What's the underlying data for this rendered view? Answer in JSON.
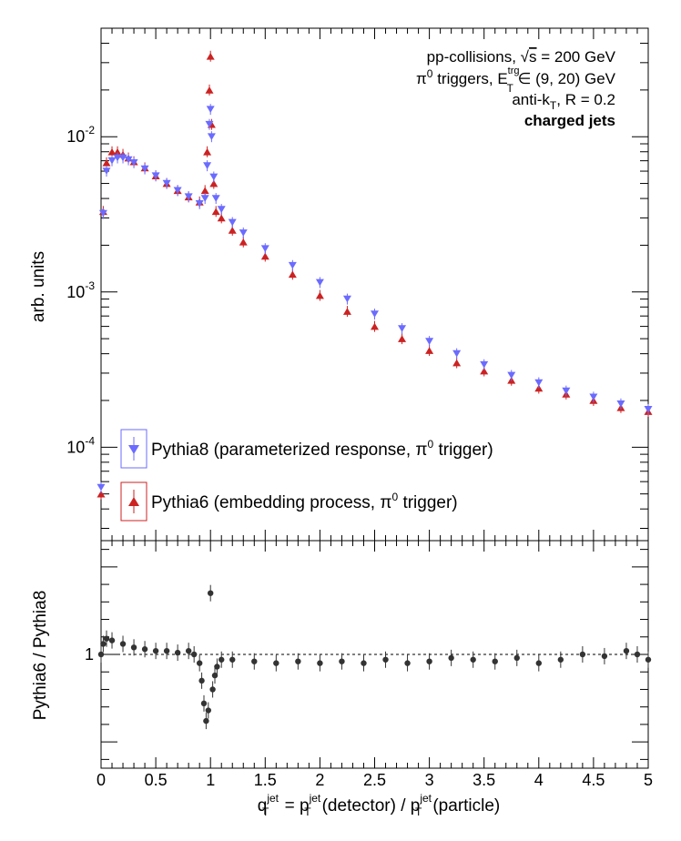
{
  "chart_data": [
    {
      "type": "scatter",
      "ylabel": "arb. units",
      "yscale": "log",
      "ylim": [
        2.5e-05,
        0.05
      ],
      "xlim": [
        0,
        5
      ],
      "yticks": [
        {
          "value": 0.01,
          "base": "10",
          "exp": "-2"
        },
        {
          "value": 0.001,
          "base": "10",
          "exp": "-3"
        },
        {
          "value": 0.0001,
          "base": "10",
          "exp": "-4"
        }
      ],
      "annotations": {
        "line1": {
          "pre": "pp-collisions, ",
          "sqrt": "√",
          "s": "s",
          "post": " = 200 GeV"
        },
        "line2": {
          "pi": "π",
          "sup0": "0",
          "mid": " triggers, E",
          "sup": "trg",
          "sub": "T",
          "post": " ∈ (9, 20) GeV"
        },
        "line3": {
          "pre": "anti-k",
          "sub": "T",
          "post": ", R = 0.2"
        },
        "line4": "charged jets"
      },
      "legend": {
        "position": "bottom-left",
        "entries": [
          {
            "pre": "Pythia8 (parameterized response, π",
            "sup": "0",
            "post": " trigger)",
            "color": "#6b6bff",
            "marker": "triangle-down"
          },
          {
            "pre": "Pythia6 (embedding process, π",
            "sup": "0",
            "post": " trigger)",
            "color": "#cc2222",
            "marker": "triangle-up"
          }
        ]
      },
      "series": [
        {
          "name": "Pythia8 (parameterized response, π0 trigger)",
          "color": "#6b6bff",
          "x": [
            0.0,
            0.02,
            0.05,
            0.1,
            0.15,
            0.2,
            0.25,
            0.3,
            0.4,
            0.5,
            0.6,
            0.7,
            0.8,
            0.9,
            0.95,
            0.97,
            0.99,
            1.0,
            1.01,
            1.03,
            1.05,
            1.1,
            1.2,
            1.3,
            1.5,
            1.75,
            2.0,
            2.25,
            2.5,
            2.75,
            3.0,
            3.25,
            3.5,
            3.75,
            4.0,
            4.25,
            4.5,
            4.75,
            5.0
          ],
          "y": [
            5.5e-05,
            0.0032,
            0.006,
            0.007,
            0.0073,
            0.0073,
            0.0071,
            0.0068,
            0.0062,
            0.0056,
            0.005,
            0.0045,
            0.0041,
            0.0037,
            0.004,
            0.0065,
            0.012,
            0.015,
            0.01,
            0.0055,
            0.004,
            0.0034,
            0.0028,
            0.0024,
            0.0019,
            0.00148,
            0.00115,
            0.0009,
            0.00072,
            0.00058,
            0.00048,
            0.0004,
            0.00034,
            0.00029,
            0.00026,
            0.00023,
            0.00021,
            0.00019,
            0.000175
          ]
        },
        {
          "name": "Pythia6 (embedding process, π0 trigger)",
          "color": "#cc2222",
          "x": [
            0.0,
            0.02,
            0.05,
            0.1,
            0.15,
            0.2,
            0.25,
            0.3,
            0.4,
            0.5,
            0.6,
            0.7,
            0.8,
            0.9,
            0.95,
            0.97,
            0.99,
            1.0,
            1.01,
            1.03,
            1.05,
            1.1,
            1.2,
            1.3,
            1.5,
            1.75,
            2.0,
            2.25,
            2.5,
            2.75,
            3.0,
            3.25,
            3.5,
            3.75,
            4.0,
            4.25,
            4.5,
            4.75,
            5.0
          ],
          "y": [
            5e-05,
            0.0033,
            0.0068,
            0.008,
            0.008,
            0.0077,
            0.0073,
            0.0069,
            0.0063,
            0.0056,
            0.005,
            0.0045,
            0.0041,
            0.0038,
            0.0045,
            0.008,
            0.02,
            0.033,
            0.012,
            0.005,
            0.0033,
            0.003,
            0.0025,
            0.0021,
            0.0017,
            0.0013,
            0.00095,
            0.00075,
            0.0006,
            0.0005,
            0.00042,
            0.00035,
            0.00031,
            0.00027,
            0.00024,
            0.00022,
            0.0002,
            0.00018,
            0.00017
          ]
        }
      ]
    },
    {
      "type": "scatter",
      "ylabel": "Pythia6 / Pythia8",
      "xlabel": {
        "q": "q",
        "qsup": "jet",
        "qsub": "T",
        "eq": " = p",
        "p1sup": "jet",
        "p1sub": "T",
        "mid": "(detector) / p",
        "p2sup": "jet",
        "p2sub": "T",
        "end": "(particle)"
      },
      "xlim": [
        0,
        5
      ],
      "ylim": [
        0.35,
        1.65
      ],
      "xticks": [
        "0",
        "0.5",
        "1",
        "1.5",
        "2",
        "2.5",
        "3",
        "3.5",
        "4",
        "4.5",
        "5"
      ],
      "yticks": [
        "1"
      ],
      "reference_line": 1,
      "series": [
        {
          "name": "ratio",
          "color": "#333333",
          "x": [
            0.0,
            0.02,
            0.05,
            0.1,
            0.2,
            0.3,
            0.4,
            0.5,
            0.6,
            0.7,
            0.8,
            0.85,
            0.9,
            0.92,
            0.94,
            0.96,
            0.98,
            1.0,
            1.02,
            1.04,
            1.06,
            1.1,
            1.2,
            1.4,
            1.6,
            1.8,
            2.0,
            2.2,
            2.4,
            2.6,
            2.8,
            3.0,
            3.2,
            3.4,
            3.6,
            3.8,
            4.0,
            4.2,
            4.4,
            4.6,
            4.8,
            4.9,
            5.0
          ],
          "y": [
            1.0,
            1.06,
            1.09,
            1.08,
            1.06,
            1.04,
            1.03,
            1.02,
            1.02,
            1.01,
            1.02,
            1.0,
            0.95,
            0.85,
            0.72,
            0.62,
            0.68,
            1.35,
            0.8,
            0.88,
            0.93,
            0.97,
            0.97,
            0.96,
            0.95,
            0.96,
            0.95,
            0.96,
            0.95,
            0.97,
            0.95,
            0.96,
            0.98,
            0.97,
            0.96,
            0.98,
            0.95,
            0.97,
            1.0,
            0.99,
            1.02,
            1.0,
            0.97
          ]
        }
      ]
    }
  ]
}
